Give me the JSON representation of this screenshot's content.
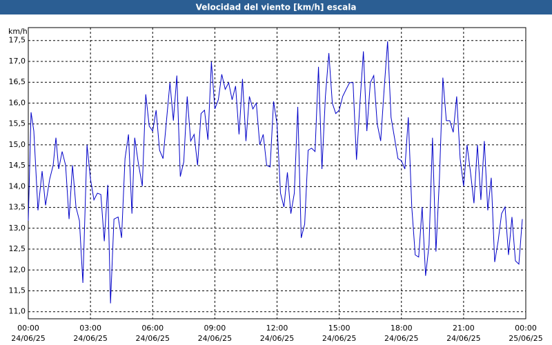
{
  "chart_data": {
    "type": "line",
    "title": "Velocidad del viento [km/h] escala",
    "y_label": "km/h",
    "x": [
      0,
      8,
      16,
      28,
      40,
      50,
      62,
      72,
      80,
      88,
      98,
      108,
      118,
      128,
      138,
      148,
      158,
      170,
      180,
      190,
      200,
      210,
      220,
      230,
      238,
      248,
      260,
      270,
      280,
      290,
      300,
      308,
      318,
      330,
      340,
      350,
      360,
      370,
      380,
      390,
      400,
      410,
      420,
      430,
      440,
      450,
      460,
      470,
      480,
      490,
      500,
      510,
      520,
      530,
      540,
      550,
      560,
      570,
      580,
      590,
      600,
      610,
      620,
      630,
      640,
      650,
      660,
      670,
      680,
      690,
      700,
      710,
      720,
      730,
      740,
      750,
      760,
      770,
      780,
      790,
      800,
      810,
      820,
      830,
      840,
      850,
      860,
      870,
      880,
      890,
      900,
      910,
      920,
      930,
      940,
      950,
      960,
      970,
      980,
      990,
      1000,
      1010,
      1020,
      1030,
      1040,
      1050,
      1060,
      1070,
      1080,
      1090,
      1100,
      1110,
      1120,
      1130,
      1140,
      1150,
      1160,
      1170,
      1180,
      1190,
      1200,
      1210,
      1220,
      1230,
      1240,
      1250,
      1260,
      1270,
      1280,
      1290,
      1300,
      1310,
      1320,
      1330,
      1340,
      1350,
      1360,
      1370,
      1380,
      1390,
      1400,
      1410,
      1420,
      1430
    ],
    "series": [
      {
        "name": "Velocidad del viento",
        "color": "#0000c8",
        "values": [
          13.18,
          15.78,
          15.33,
          13.43,
          14.37,
          13.55,
          14.18,
          14.51,
          15.17,
          14.42,
          14.84,
          14.51,
          13.22,
          14.51,
          13.51,
          13.18,
          11.69,
          15.0,
          14.18,
          13.68,
          13.84,
          13.81,
          12.69,
          14.04,
          11.2,
          13.22,
          13.27,
          12.77,
          14.67,
          15.25,
          13.35,
          15.17,
          14.59,
          14.01,
          16.21,
          15.45,
          15.33,
          15.83,
          14.87,
          14.67,
          15.58,
          16.49,
          15.58,
          16.66,
          14.24,
          14.59,
          16.16,
          15.09,
          15.25,
          14.51,
          15.75,
          15.83,
          15.12,
          16.99,
          15.86,
          16.08,
          16.69,
          16.33,
          16.49,
          16.08,
          16.41,
          15.25,
          16.58,
          15.09,
          16.16,
          15.86,
          16.0,
          15.0,
          15.25,
          14.51,
          14.47,
          16.04,
          15.5,
          13.84,
          13.51,
          14.34,
          13.35,
          13.84,
          15.91,
          12.77,
          13.1,
          14.87,
          14.92,
          14.84,
          16.87,
          14.42,
          16.16,
          17.2,
          16.0,
          15.75,
          15.83,
          16.16,
          16.33,
          16.49,
          16.49,
          14.64,
          16.0,
          17.24,
          15.33,
          16.49,
          16.66,
          15.5,
          15.09,
          16.33,
          17.48,
          15.66,
          15.17,
          14.67,
          14.62,
          14.42,
          15.66,
          13.51,
          12.36,
          12.31,
          13.51,
          11.86,
          12.6,
          15.17,
          12.44,
          14.18,
          16.61,
          15.58,
          15.58,
          15.3,
          16.16,
          14.67,
          14.01,
          15.0,
          14.34,
          13.6,
          15.0,
          13.68,
          15.09,
          13.43,
          14.21,
          12.19,
          12.69,
          13.35,
          13.51,
          12.36,
          13.27,
          12.22,
          12.14,
          13.22
        ]
      }
    ],
    "xlim": [
      0,
      1440
    ],
    "xticks": [
      {
        "value": 0,
        "label": "00:00"
      },
      {
        "value": 180,
        "label": "03:00"
      },
      {
        "value": 360,
        "label": "06:00"
      },
      {
        "value": 540,
        "label": "09:00"
      },
      {
        "value": 720,
        "label": "12:00"
      },
      {
        "value": 900,
        "label": "15:00"
      },
      {
        "value": 1080,
        "label": "18:00"
      },
      {
        "value": 1260,
        "label": "21:00"
      },
      {
        "value": 1440,
        "label": "00:00"
      }
    ],
    "xtick_dates": [
      "24/06/25",
      "24/06/25",
      "24/06/25",
      "24/06/25",
      "24/06/25",
      "24/06/25",
      "24/06/25",
      "24/06/25",
      "25/06/25"
    ],
    "ylim": [
      10.83,
      17.81
    ],
    "yticks": [
      {
        "value": 11.0,
        "label": "11,0"
      },
      {
        "value": 11.5,
        "label": "11,5"
      },
      {
        "value": 12.0,
        "label": "12,0"
      },
      {
        "value": 12.5,
        "label": "12,5"
      },
      {
        "value": 13.0,
        "label": "13,0"
      },
      {
        "value": 13.5,
        "label": "13,5"
      },
      {
        "value": 14.0,
        "label": "14,0"
      },
      {
        "value": 14.5,
        "label": "14,5"
      },
      {
        "value": 15.0,
        "label": "15,0"
      },
      {
        "value": 15.5,
        "label": "15,5"
      },
      {
        "value": 16.0,
        "label": "16,0"
      },
      {
        "value": 16.5,
        "label": "16,5"
      },
      {
        "value": 17.0,
        "label": "17,0"
      },
      {
        "value": 17.5,
        "label": "17,5"
      }
    ],
    "grid": true
  }
}
